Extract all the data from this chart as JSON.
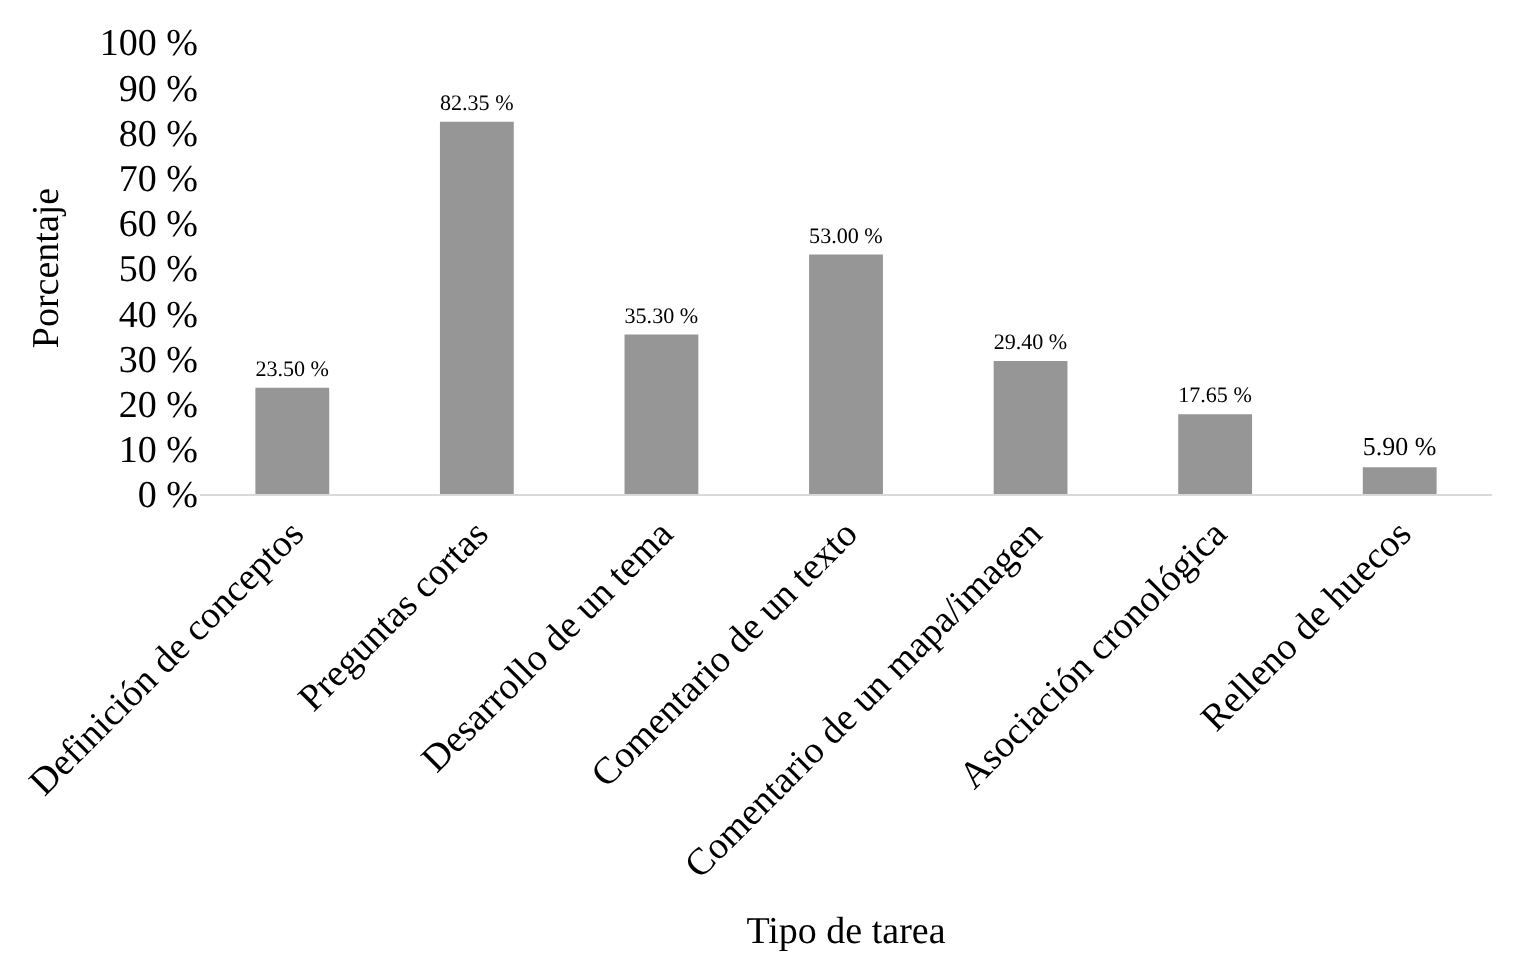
{
  "chart_data": {
    "type": "bar",
    "xlabel": "Tipo de tarea",
    "ylabel": "Porcentaje",
    "categories": [
      "Definición de conceptos",
      "Preguntas cortas",
      "Desarrollo de un tema",
      "Comentario de un texto",
      "Comentario de un mapa/imagen",
      "Asociación cronológica",
      "Relleno de huecos"
    ],
    "values": [
      23.5,
      82.35,
      35.3,
      53.0,
      29.4,
      17.65,
      5.9
    ],
    "value_labels": [
      "23.50 %",
      "82.35 %",
      "35.30 %",
      "53.00 %",
      "29.40 %",
      "17.65 %",
      "5.90 %"
    ],
    "color": "#969696",
    "ylim": [
      0,
      100
    ],
    "yticks": [
      {
        "value": 0,
        "label": "0 %"
      },
      {
        "value": 10,
        "label": "10 %"
      },
      {
        "value": 20,
        "label": "20 %"
      },
      {
        "value": 30,
        "label": "30 %"
      },
      {
        "value": 40,
        "label": "40 %"
      },
      {
        "value": 50,
        "label": "50 %"
      },
      {
        "value": 60,
        "label": "60 %"
      },
      {
        "value": 70,
        "label": "70 %"
      },
      {
        "value": 80,
        "label": "80 %"
      },
      {
        "value": 90,
        "label": "90 %"
      },
      {
        "value": 100,
        "label": "100 %"
      }
    ],
    "grid": false,
    "legend": false
  }
}
